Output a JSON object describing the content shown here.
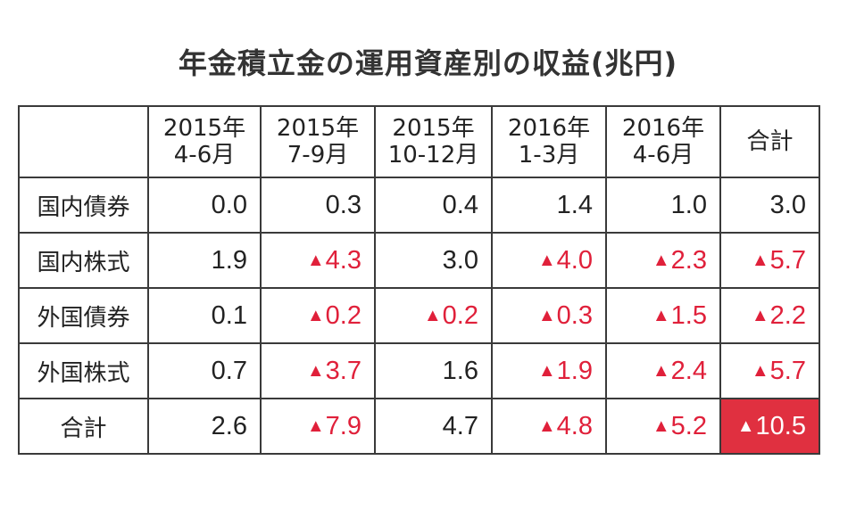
{
  "title": "年金積立金の運用資産別の収益(兆円)",
  "header": [
    {
      "l1": "",
      "l2": ""
    },
    {
      "l1": "2015年",
      "l2": "4-6月"
    },
    {
      "l1": "2015年",
      "l2": "7-9月"
    },
    {
      "l1": "2015年",
      "l2": "10-12月"
    },
    {
      "l1": "2016年",
      "l2": "1-3月"
    },
    {
      "l1": "2016年",
      "l2": "4-6月"
    },
    {
      "l1": "合計",
      "l2": ""
    }
  ],
  "rows": [
    {
      "label": "国内債券",
      "cells": [
        {
          "sign": "",
          "value": "0.0"
        },
        {
          "sign": "",
          "value": "0.3"
        },
        {
          "sign": "",
          "value": "0.4"
        },
        {
          "sign": "",
          "value": "1.4"
        },
        {
          "sign": "",
          "value": "1.0"
        },
        {
          "sign": "",
          "value": "3.0"
        }
      ]
    },
    {
      "label": "国内株式",
      "cells": [
        {
          "sign": "",
          "value": "1.9"
        },
        {
          "sign": "▲",
          "value": "4.3"
        },
        {
          "sign": "",
          "value": "3.0"
        },
        {
          "sign": "▲",
          "value": "4.0"
        },
        {
          "sign": "▲",
          "value": "2.3"
        },
        {
          "sign": "▲",
          "value": "5.7"
        }
      ]
    },
    {
      "label": "外国債券",
      "cells": [
        {
          "sign": "",
          "value": "0.1"
        },
        {
          "sign": "▲",
          "value": "0.2"
        },
        {
          "sign": "▲",
          "value": "0.2"
        },
        {
          "sign": "▲",
          "value": "0.3"
        },
        {
          "sign": "▲",
          "value": "1.5"
        },
        {
          "sign": "▲",
          "value": "2.2"
        }
      ]
    },
    {
      "label": "外国株式",
      "cells": [
        {
          "sign": "",
          "value": "0.7"
        },
        {
          "sign": "▲",
          "value": "3.7"
        },
        {
          "sign": "",
          "value": "1.6"
        },
        {
          "sign": "▲",
          "value": "1.9"
        },
        {
          "sign": "▲",
          "value": "2.4"
        },
        {
          "sign": "▲",
          "value": "5.7"
        }
      ]
    },
    {
      "label": "合計",
      "cells": [
        {
          "sign": "",
          "value": "2.6"
        },
        {
          "sign": "▲",
          "value": "7.9"
        },
        {
          "sign": "",
          "value": "4.7"
        },
        {
          "sign": "▲",
          "value": "4.8"
        },
        {
          "sign": "▲",
          "value": "5.2"
        },
        {
          "sign": "▲",
          "value": "10.5"
        }
      ]
    }
  ],
  "colors": {
    "negative": "#e0203a",
    "grand_total_bg": "#e03040"
  }
}
